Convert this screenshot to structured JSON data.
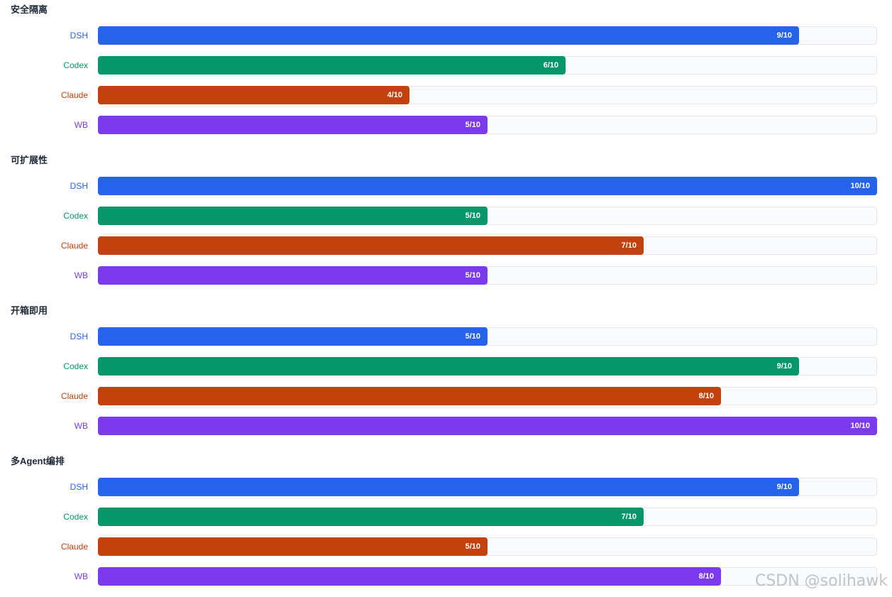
{
  "chart_data": {
    "type": "bar",
    "orientation": "horizontal",
    "max_value": 10,
    "value_suffix": "/10",
    "series": [
      {
        "name": "DSH",
        "color": "#2563eb"
      },
      {
        "name": "Codex",
        "color": "#059669"
      },
      {
        "name": "Claude",
        "color": "#c2410c"
      },
      {
        "name": "WB",
        "color": "#7c3aed"
      }
    ],
    "groups": [
      {
        "title": "安全隔离",
        "values": [
          9,
          6,
          4,
          5
        ]
      },
      {
        "title": "可扩展性",
        "values": [
          10,
          5,
          7,
          5
        ]
      },
      {
        "title": "开箱即用",
        "values": [
          5,
          9,
          8,
          10
        ]
      },
      {
        "title": "多Agent编排",
        "values": [
          9,
          7,
          5,
          8
        ]
      }
    ]
  },
  "colors": {
    "track": "#f8fafc",
    "track_border": "#e5e7eb",
    "group_title": "#1f2937"
  },
  "watermark": "CSDN @solihawk"
}
